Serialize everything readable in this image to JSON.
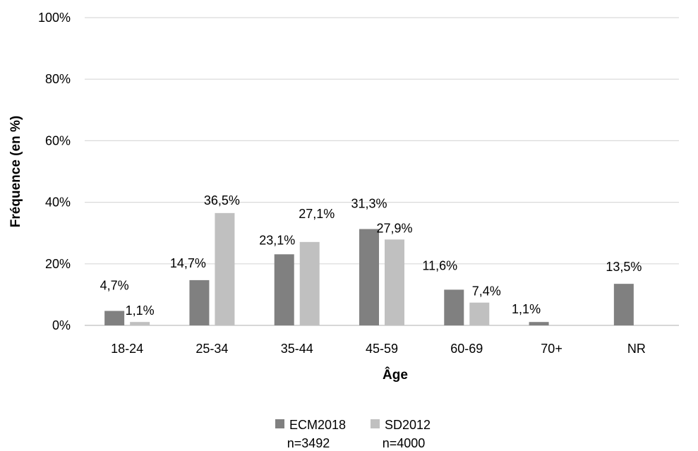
{
  "chart_data": {
    "type": "bar",
    "title": "",
    "xlabel": "Âge",
    "ylabel": "Fréquence (en %)",
    "ylim": [
      0,
      100
    ],
    "yticks": [
      "0%",
      "20%",
      "40%",
      "60%",
      "80%",
      "100%"
    ],
    "ytick_values": [
      0,
      20,
      40,
      60,
      80,
      100
    ],
    "categories": [
      "18-24",
      "25-34",
      "35-44",
      "45-59",
      "60-69",
      "70+",
      "NR"
    ],
    "series": [
      {
        "name": "ECM2018",
        "sample": "n=3492",
        "color": "#808080",
        "values": [
          4.7,
          14.7,
          23.1,
          31.3,
          11.6,
          1.1,
          13.5
        ],
        "labels": [
          "4,7%",
          "14,7%",
          "23,1%",
          "31,3%",
          "11,6%",
          "1,1%",
          "13,5%"
        ]
      },
      {
        "name": "SD2012",
        "sample": "n=4000",
        "color": "#c0c0c0",
        "values": [
          1.1,
          36.5,
          27.1,
          27.9,
          7.4,
          null,
          null
        ],
        "labels": [
          "1,1%",
          "36,5%",
          "27,1%",
          "27,9%",
          "7,4%",
          "",
          ""
        ]
      }
    ],
    "grid": true,
    "gridline_color": "#d9d9d9",
    "legend_position": "bottom"
  }
}
